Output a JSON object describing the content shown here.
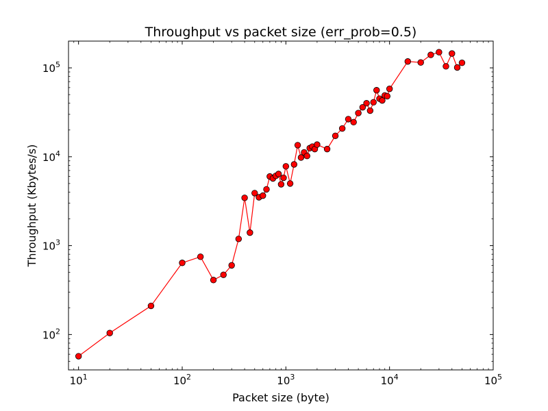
{
  "chart_data": {
    "type": "line",
    "title": "Throughput vs packet size (err_prob=0.5)",
    "xlabel": "Packet size (byte)",
    "ylabel": "Throughput (Kbytes/s)",
    "xscale": "log",
    "yscale": "log",
    "xlim": [
      8,
      100000
    ],
    "ylim": [
      40,
      200000
    ],
    "x_ticks": [
      {
        "base": "10",
        "exp": "1",
        "value": 10
      },
      {
        "base": "10",
        "exp": "2",
        "value": 100
      },
      {
        "base": "10",
        "exp": "3",
        "value": 1000
      },
      {
        "base": "10",
        "exp": "4",
        "value": 10000
      },
      {
        "base": "10",
        "exp": "5",
        "value": 100000
      }
    ],
    "y_ticks": [
      {
        "base": "10",
        "exp": "2",
        "value": 100
      },
      {
        "base": "10",
        "exp": "3",
        "value": 1000
      },
      {
        "base": "10",
        "exp": "4",
        "value": 10000
      },
      {
        "base": "10",
        "exp": "5",
        "value": 100000
      }
    ],
    "grid": false,
    "legend": "none",
    "series": [
      {
        "color": "#ff0000",
        "marker": "circle",
        "x": [
          10,
          20,
          50,
          100,
          150,
          200,
          250,
          300,
          350,
          400,
          450,
          500,
          550,
          600,
          650,
          700,
          750,
          800,
          850,
          900,
          950,
          1000,
          1100,
          1200,
          1300,
          1400,
          1500,
          1600,
          1700,
          1800,
          1900,
          2000,
          2500,
          3000,
          3500,
          4000,
          4500,
          5000,
          5500,
          6000,
          6500,
          7000,
          7500,
          8000,
          8500,
          9000,
          9500,
          10000,
          15000,
          20000,
          25000,
          30000,
          35000,
          40000,
          45000,
          50000
        ],
        "y": [
          57,
          104,
          210,
          640,
          750,
          410,
          470,
          600,
          1190,
          3450,
          1400,
          3900,
          3500,
          3650,
          4300,
          6000,
          5700,
          6100,
          6400,
          4900,
          5800,
          7800,
          5000,
          8200,
          13500,
          9800,
          11200,
          10200,
          12500,
          13000,
          12200,
          13700,
          12200,
          17200,
          20800,
          26500,
          24500,
          31000,
          36000,
          40000,
          33000,
          41000,
          56000,
          45000,
          43000,
          49000,
          48000,
          58000,
          118000,
          115000,
          140000,
          150000,
          104000,
          145000,
          101000,
          114000
        ]
      }
    ]
  }
}
